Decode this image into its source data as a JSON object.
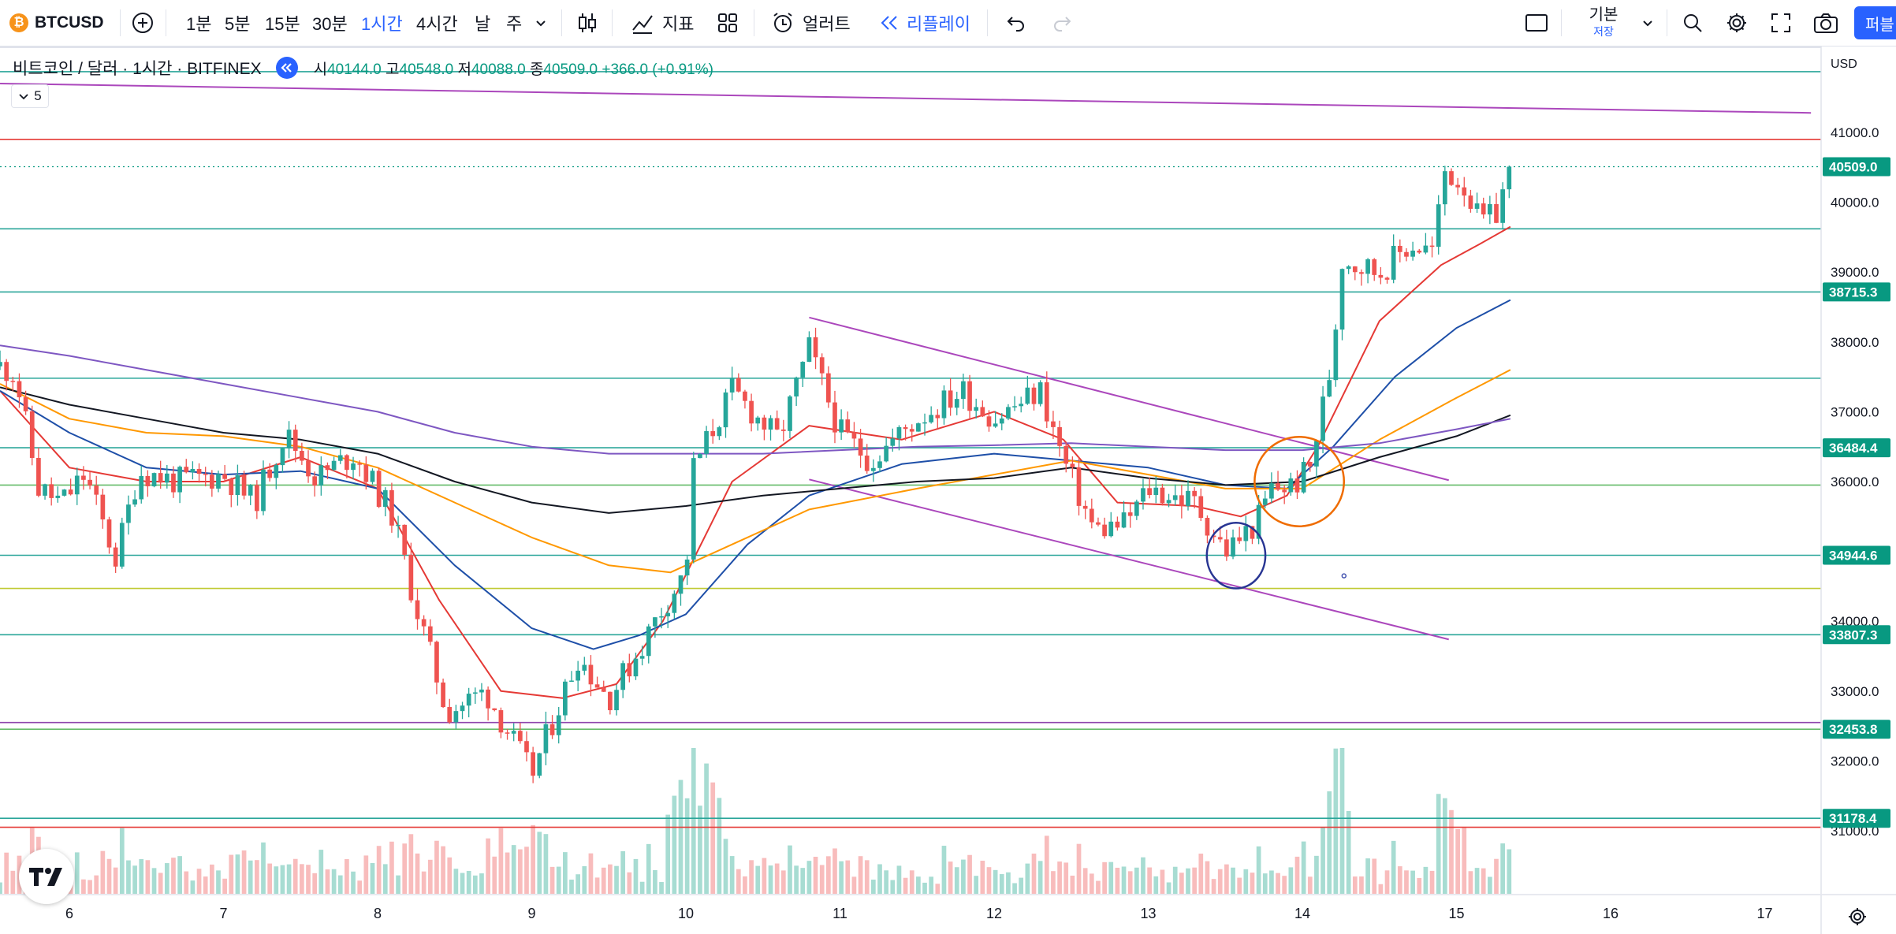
{
  "toolbar": {
    "symbol": "BTCUSD",
    "intervals": [
      "1분",
      "5분",
      "15분",
      "30분",
      "1시간",
      "4시간",
      "날",
      "주"
    ],
    "active_interval": "1시간",
    "indicators_label": "지표",
    "alert_label": "얼러트",
    "replay_label": "리플레이",
    "layout_label": "기본",
    "save_label": "저장",
    "publish_label": "퍼블"
  },
  "legend": {
    "title": "비트코인 / 달러 · 1시간 · BITFINEX",
    "o_label": "시",
    "o": "40144.0",
    "h_label": "고",
    "h": "40548.0",
    "l_label": "저",
    "l": "40088.0",
    "c_label": "종",
    "c": "40509.0",
    "change": "+366.0 (+0.91%)",
    "indicator_count": "5"
  },
  "price_axis": {
    "currency": "USD",
    "ticks": [
      "41000.0",
      "40000.0",
      "39000.0",
      "38000.0",
      "37000.0",
      "36000.0",
      "35000.0",
      "34000.0",
      "33000.0",
      "32000.0",
      "31000.0"
    ],
    "labels": [
      {
        "value": 40509.0,
        "text": "40509.0",
        "color": "#089981"
      },
      {
        "value": 38715.3,
        "text": "38715.3",
        "color": "#089981"
      },
      {
        "value": 36484.4,
        "text": "36484.4",
        "color": "#089981"
      },
      {
        "value": 34944.6,
        "text": "34944.6",
        "color": "#089981"
      },
      {
        "value": 33807.3,
        "text": "33807.3",
        "color": "#089981"
      },
      {
        "value": 32453.8,
        "text": "32453.8",
        "color": "#089981"
      },
      {
        "value": 31178.4,
        "text": "31178.4",
        "color": "#089981"
      }
    ]
  },
  "time_axis": {
    "labels": [
      "6",
      "7",
      "8",
      "9",
      "10",
      "11",
      "12",
      "13",
      "14",
      "15",
      "16",
      "17"
    ]
  },
  "colors": {
    "up": "#26a69a",
    "down": "#ef5350",
    "vol_up": "#a7dcd2",
    "vol_down": "#f8bcbc",
    "ma_red": "#e53935",
    "ma_blue": "#1e4fa8",
    "ma_orange": "#ff9800",
    "ma_black": "#131722",
    "ma_purple": "#7e57c2",
    "trendline": "#ab47bc",
    "hline_teal": "#2aa69a",
    "hline_green": "#66bb6a",
    "hline_red": "#e53935",
    "hline_purple": "#8e44ad",
    "hline_olive": "#c0ca33",
    "circle_orange": "#ef6c00",
    "circle_blue": "#283593"
  },
  "chart_data": {
    "type": "candlestick",
    "symbol": "BTCUSD",
    "exchange": "BITFINEX",
    "interval": "1H",
    "x_labels": [
      "6",
      "7",
      "8",
      "9",
      "10",
      "11",
      "12",
      "13",
      "14",
      "15",
      "16",
      "17"
    ],
    "ylim": [
      30150,
      41950
    ],
    "anchors": [
      {
        "day": 5.55,
        "price": 37650
      },
      {
        "day": 5.65,
        "price": 37550
      },
      {
        "day": 5.8,
        "price": 35900
      },
      {
        "day": 5.95,
        "price": 35700
      },
      {
        "day": 6.1,
        "price": 36100
      },
      {
        "day": 6.3,
        "price": 34900
      },
      {
        "day": 6.45,
        "price": 36150
      },
      {
        "day": 6.7,
        "price": 36000
      },
      {
        "day": 7.0,
        "price": 36100
      },
      {
        "day": 7.2,
        "price": 35700
      },
      {
        "day": 7.4,
        "price": 36700
      },
      {
        "day": 7.6,
        "price": 36050
      },
      {
        "day": 7.85,
        "price": 36400
      },
      {
        "day": 8.1,
        "price": 35500
      },
      {
        "day": 8.25,
        "price": 34200
      },
      {
        "day": 8.45,
        "price": 32700
      },
      {
        "day": 8.7,
        "price": 33000
      },
      {
        "day": 8.9,
        "price": 32200
      },
      {
        "day": 9.0,
        "price": 31800
      },
      {
        "day": 9.3,
        "price": 33500
      },
      {
        "day": 9.5,
        "price": 32900
      },
      {
        "day": 9.7,
        "price": 33600
      },
      {
        "day": 9.85,
        "price": 34200
      },
      {
        "day": 10.0,
        "price": 34700
      },
      {
        "day": 10.05,
        "price": 36200
      },
      {
        "day": 10.3,
        "price": 37300
      },
      {
        "day": 10.6,
        "price": 36600
      },
      {
        "day": 10.8,
        "price": 37900
      },
      {
        "day": 11.0,
        "price": 36700
      },
      {
        "day": 11.2,
        "price": 36300
      },
      {
        "day": 11.5,
        "price": 36900
      },
      {
        "day": 11.8,
        "price": 37300
      },
      {
        "day": 12.0,
        "price": 36900
      },
      {
        "day": 12.3,
        "price": 37300
      },
      {
        "day": 12.45,
        "price": 36300
      },
      {
        "day": 12.65,
        "price": 35300
      },
      {
        "day": 12.85,
        "price": 35400
      },
      {
        "day": 13.0,
        "price": 35900
      },
      {
        "day": 13.3,
        "price": 35700
      },
      {
        "day": 13.5,
        "price": 35000
      },
      {
        "day": 13.7,
        "price": 35400
      },
      {
        "day": 13.8,
        "price": 35900
      },
      {
        "day": 13.95,
        "price": 35950
      },
      {
        "day": 14.05,
        "price": 36200
      },
      {
        "day": 14.2,
        "price": 37800
      },
      {
        "day": 14.25,
        "price": 39200
      },
      {
        "day": 14.5,
        "price": 39000
      },
      {
        "day": 14.7,
        "price": 39400
      },
      {
        "day": 14.85,
        "price": 39300
      },
      {
        "day": 14.92,
        "price": 40450
      },
      {
        "day": 15.05,
        "price": 40250
      },
      {
        "day": 15.15,
        "price": 39700
      },
      {
        "day": 15.25,
        "price": 39800
      },
      {
        "day": 15.35,
        "price": 40509
      }
    ],
    "moving_averages": [
      {
        "color": "#e53935",
        "pts": [
          [
            5.55,
            37300
          ],
          [
            6.0,
            36200
          ],
          [
            6.5,
            36000
          ],
          [
            7.0,
            36000
          ],
          [
            7.5,
            36350
          ],
          [
            8.0,
            35900
          ],
          [
            8.4,
            34300
          ],
          [
            8.8,
            33000
          ],
          [
            9.2,
            32900
          ],
          [
            9.55,
            33100
          ],
          [
            9.85,
            34000
          ],
          [
            10.3,
            36000
          ],
          [
            10.8,
            36800
          ],
          [
            11.4,
            36600
          ],
          [
            12.0,
            37000
          ],
          [
            12.45,
            36600
          ],
          [
            12.8,
            35700
          ],
          [
            13.3,
            35650
          ],
          [
            13.6,
            35500
          ],
          [
            13.9,
            35800
          ],
          [
            14.1,
            36500
          ],
          [
            14.5,
            38300
          ],
          [
            14.9,
            39100
          ],
          [
            15.15,
            39400
          ],
          [
            15.35,
            39650
          ]
        ]
      },
      {
        "color": "#1e4fa8",
        "pts": [
          [
            5.55,
            37300
          ],
          [
            6.0,
            36700
          ],
          [
            6.5,
            36200
          ],
          [
            7.0,
            36100
          ],
          [
            7.5,
            36150
          ],
          [
            8.0,
            35900
          ],
          [
            8.5,
            34800
          ],
          [
            9.0,
            33900
          ],
          [
            9.4,
            33600
          ],
          [
            9.7,
            33800
          ],
          [
            10.0,
            34100
          ],
          [
            10.4,
            35100
          ],
          [
            10.8,
            35800
          ],
          [
            11.4,
            36250
          ],
          [
            12.0,
            36400
          ],
          [
            12.5,
            36300
          ],
          [
            13.0,
            36200
          ],
          [
            13.5,
            35950
          ],
          [
            13.9,
            35900
          ],
          [
            14.2,
            36500
          ],
          [
            14.6,
            37500
          ],
          [
            15.0,
            38200
          ],
          [
            15.35,
            38600
          ]
        ]
      },
      {
        "color": "#ff9800",
        "pts": [
          [
            5.55,
            37400
          ],
          [
            6.0,
            36900
          ],
          [
            6.5,
            36700
          ],
          [
            7.0,
            36650
          ],
          [
            7.5,
            36500
          ],
          [
            8.0,
            36200
          ],
          [
            8.5,
            35700
          ],
          [
            9.0,
            35200
          ],
          [
            9.5,
            34800
          ],
          [
            9.9,
            34700
          ],
          [
            10.3,
            35100
          ],
          [
            10.8,
            35600
          ],
          [
            11.5,
            35900
          ],
          [
            12.0,
            36100
          ],
          [
            12.5,
            36300
          ],
          [
            13.0,
            36100
          ],
          [
            13.5,
            35900
          ],
          [
            14.0,
            35900
          ],
          [
            14.5,
            36600
          ],
          [
            15.0,
            37200
          ],
          [
            15.35,
            37600
          ]
        ]
      },
      {
        "color": "#131722",
        "pts": [
          [
            5.55,
            37350
          ],
          [
            6.0,
            37100
          ],
          [
            6.5,
            36900
          ],
          [
            7.0,
            36700
          ],
          [
            7.5,
            36600
          ],
          [
            8.0,
            36400
          ],
          [
            8.5,
            36000
          ],
          [
            9.0,
            35700
          ],
          [
            9.5,
            35550
          ],
          [
            10.0,
            35650
          ],
          [
            10.5,
            35800
          ],
          [
            11.0,
            35900
          ],
          [
            11.5,
            36000
          ],
          [
            12.0,
            36050
          ],
          [
            12.5,
            36200
          ],
          [
            13.0,
            36050
          ],
          [
            13.5,
            35950
          ],
          [
            14.0,
            36000
          ],
          [
            14.5,
            36350
          ],
          [
            15.0,
            36650
          ],
          [
            15.35,
            36950
          ]
        ]
      },
      {
        "color": "#7e57c2",
        "pts": [
          [
            5.55,
            37950
          ],
          [
            6.0,
            37800
          ],
          [
            7.0,
            37400
          ],
          [
            7.5,
            37200
          ],
          [
            8.0,
            37000
          ],
          [
            8.5,
            36700
          ],
          [
            9.0,
            36500
          ],
          [
            9.5,
            36400
          ],
          [
            10.0,
            36400
          ],
          [
            10.5,
            36400
          ],
          [
            11.0,
            36450
          ],
          [
            11.5,
            36500
          ],
          [
            12.0,
            36520
          ],
          [
            12.5,
            36550
          ],
          [
            13.0,
            36500
          ],
          [
            13.5,
            36450
          ],
          [
            14.0,
            36450
          ],
          [
            14.5,
            36550
          ],
          [
            15.0,
            36750
          ],
          [
            15.35,
            36900
          ]
        ]
      }
    ],
    "drawings": {
      "horizontal_lines": [
        {
          "price": 41870,
          "color": "#2aa69a"
        },
        {
          "price": 40900,
          "color": "#e53935"
        },
        {
          "price": 39620,
          "color": "#2aa69a"
        },
        {
          "price": 38715.3,
          "color": "#2aa69a"
        },
        {
          "price": 37480,
          "color": "#2aa69a"
        },
        {
          "price": 36484.4,
          "color": "#2aa69a"
        },
        {
          "price": 35950,
          "color": "#66bb6a"
        },
        {
          "price": 34944.6,
          "color": "#2aa69a"
        },
        {
          "price": 34470,
          "color": "#c0ca33"
        },
        {
          "price": 33807.3,
          "color": "#2aa69a"
        },
        {
          "price": 32550,
          "color": "#8e44ad"
        },
        {
          "price": 32453.8,
          "color": "#66bb6a"
        },
        {
          "price": 31178.4,
          "color": "#2aa69a"
        },
        {
          "price": 31050,
          "color": "#e53935"
        }
      ],
      "trend_lines": [
        {
          "from": [
            5.55,
            41700
          ],
          "to": [
            17.3,
            41280
          ],
          "color": "#ab47bc"
        },
        {
          "from": [
            10.8,
            38350
          ],
          "to": [
            14.95,
            36020
          ],
          "color": "#ab47bc"
        },
        {
          "from": [
            10.8,
            36030
          ],
          "to": [
            14.95,
            33740
          ],
          "color": "#ab47bc"
        }
      ],
      "circles": [
        {
          "day": 13.98,
          "price": 36000,
          "rx": 0.29,
          "ry": 640,
          "color": "#ef6c00"
        },
        {
          "day": 13.57,
          "price": 34940,
          "rx": 0.19,
          "ry": 470,
          "color": "#283593"
        }
      ],
      "marker": {
        "day": 14.27,
        "price": 34650,
        "color": "#3949ab"
      }
    }
  }
}
